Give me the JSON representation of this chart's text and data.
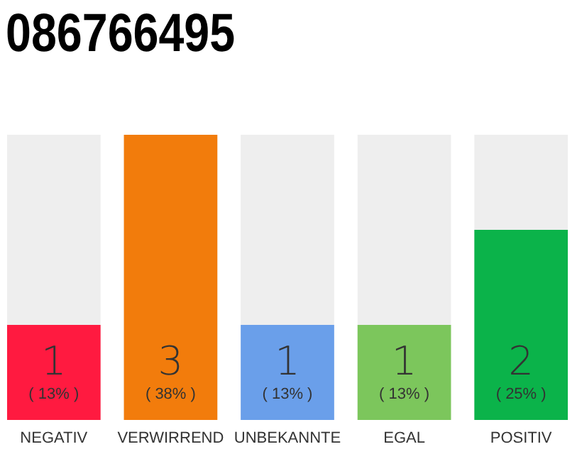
{
  "chart_data": {
    "type": "bar",
    "title": "086766495",
    "categories": [
      "NEGATIV",
      "VERWIRREND",
      "UNBEKANNTE",
      "EGAL",
      "POSITIV"
    ],
    "values": [
      1,
      3,
      1,
      1,
      2
    ],
    "colors": [
      "#ff1a40",
      "#f27c0c",
      "#6a9fea",
      "#7cc65c",
      "#0bb34a"
    ],
    "ylim": [
      0,
      3
    ],
    "data_labels": true,
    "tick_labels": "x",
    "annotations": [
      "( 13% )",
      "( 38% )",
      "( 13% )",
      "( 13% )",
      "( 25% )"
    ]
  }
}
